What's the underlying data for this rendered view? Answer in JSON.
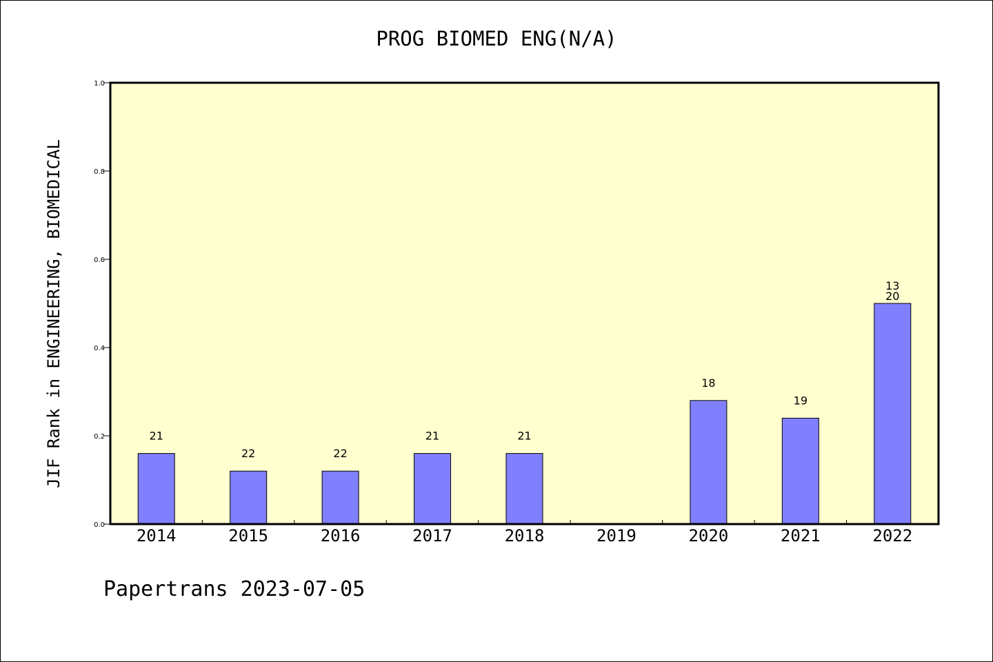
{
  "chart_data": {
    "type": "bar",
    "title": "PROG BIOMED ENG(N/A)",
    "xlabel": "",
    "ylabel": "JIF Rank in ENGINEERING, BIOMEDICAL",
    "ylim": [
      0,
      1.0
    ],
    "yticks": [
      0.0,
      0.2,
      0.4,
      0.6,
      0.8,
      1.0
    ],
    "ytick_labels": [
      "0.0",
      "0.2",
      "0.4",
      "0.6",
      "0.8",
      "1.0"
    ],
    "categories": [
      "2014",
      "2015",
      "2016",
      "2017",
      "2018",
      "2019",
      "2020",
      "2021",
      "2022"
    ],
    "values": [
      0.16,
      0.12,
      0.12,
      0.16,
      0.16,
      null,
      0.28,
      0.24,
      0.5
    ],
    "data_labels": [
      [
        "21"
      ],
      [
        "22"
      ],
      [
        "22"
      ],
      [
        "21"
      ],
      [
        "21"
      ],
      [],
      [
        "18"
      ],
      [
        "19"
      ],
      [
        "13",
        "20"
      ]
    ],
    "grid": false,
    "legend": "none",
    "plot_background": "#FFFFD0",
    "bar_color": "#8080FF"
  },
  "footer": {
    "text": "Papertrans 2023-07-05"
  }
}
